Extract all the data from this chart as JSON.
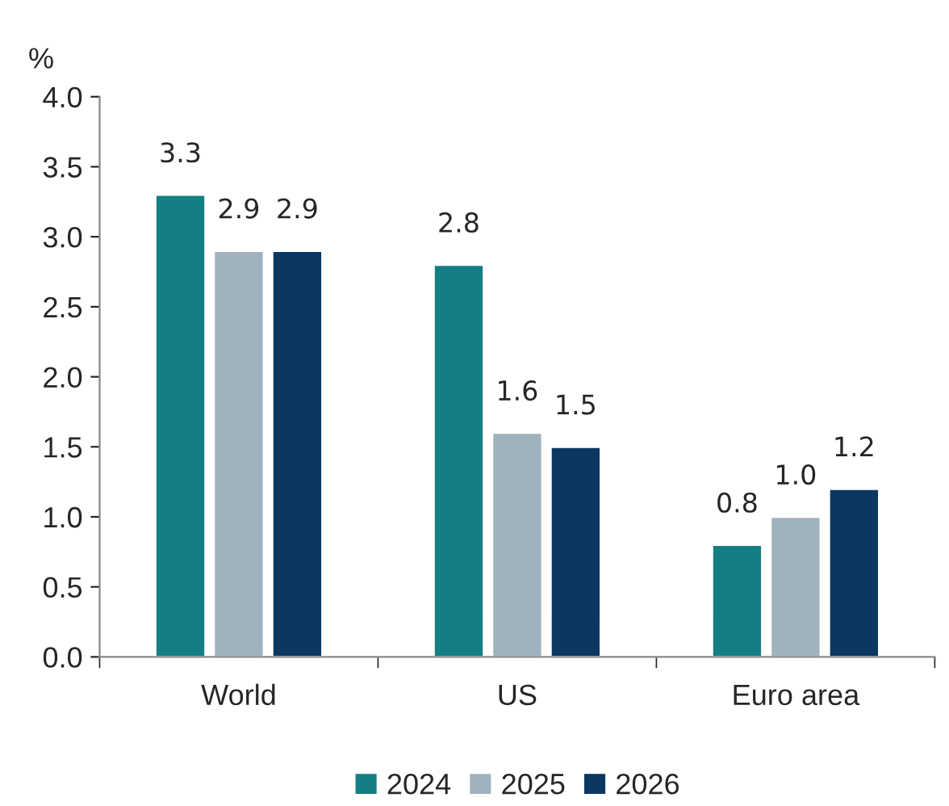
{
  "chart_data": {
    "type": "bar",
    "ylabel": "%",
    "categories": [
      "World",
      "US",
      "Euro area"
    ],
    "series": [
      {
        "name": "2024",
        "color": "#137e84",
        "values": [
          3.3,
          2.8,
          0.8
        ],
        "value_labels": [
          "3.3",
          "2.8",
          "0.8"
        ]
      },
      {
        "name": "2025",
        "color": "#a0b2bd",
        "values": [
          2.9,
          1.6,
          1.0
        ],
        "value_labels": [
          "2.9",
          "1.6",
          "1.0"
        ]
      },
      {
        "name": "2026",
        "color": "#0b3760",
        "values": [
          2.9,
          1.5,
          1.2
        ],
        "value_labels": [
          "2.9",
          "1.5",
          "1.2"
        ]
      }
    ],
    "ylim": [
      0,
      4
    ],
    "yticks": [
      {
        "value": 0,
        "label": "0.0"
      },
      {
        "value": 0.5,
        "label": "0.5"
      },
      {
        "value": 1,
        "label": "1.0"
      },
      {
        "value": 1.5,
        "label": "1.5"
      },
      {
        "value": 2,
        "label": "2.0"
      },
      {
        "value": 2.5,
        "label": "2.5"
      },
      {
        "value": 3,
        "label": "3.0"
      },
      {
        "value": 3.5,
        "label": "3.5"
      },
      {
        "value": 4,
        "label": "4.0"
      }
    ],
    "grid": false,
    "legend": "bottom"
  }
}
